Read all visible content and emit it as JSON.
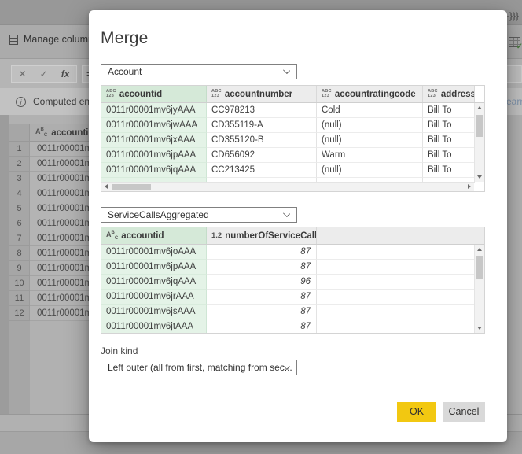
{
  "colors": {
    "accent_yellow": "#F2C811",
    "selected_column_green": "#E4F3E7",
    "selected_header_green": "#D5E9D8",
    "link_blue": "#7E93AD"
  },
  "icons": {
    "abc123_line1": "ABC",
    "abc123_line2": "123",
    "text_type_base": "A",
    "text_type_sup": "B",
    "text_type_sub": "C",
    "number_type": "1.2",
    "fx": "fx",
    "cancel_glyph": "✕",
    "check_glyph": "✓",
    "info_glyph": "i"
  },
  "background": {
    "ribbon_group_label": "Manage columns",
    "formula_bar": {
      "visible_text": "=",
      "right_fragment": "-}}}"
    },
    "info_bar": {
      "text_fragment": "Computed enti",
      "link_fragment": "earn"
    },
    "grid": {
      "header_label": "accountid",
      "cell_fragment": "0011r00001m",
      "row_numbers": [
        "1",
        "2",
        "3",
        "4",
        "5",
        "6",
        "7",
        "8",
        "9",
        "10",
        "11",
        "12"
      ]
    }
  },
  "dialog": {
    "title": "Merge",
    "first_query_dropdown": "Account",
    "second_query_dropdown": "ServiceCallsAggregated",
    "first_table": {
      "columns": [
        {
          "type": "abc123",
          "label": "accountid",
          "selected": true,
          "numeric": false
        },
        {
          "type": "abc123",
          "label": "accountnumber",
          "selected": false,
          "numeric": false
        },
        {
          "type": "abc123",
          "label": "accountratingcode",
          "selected": false,
          "numeric": false
        },
        {
          "type": "abc123",
          "label": "address1_addr",
          "selected": false,
          "numeric": false
        }
      ],
      "rows": [
        [
          "0011r00001mv6jyAAA",
          "CC978213",
          "Cold",
          "Bill To"
        ],
        [
          "0011r00001mv6jwAAA",
          "CD355119-A",
          "(null)",
          "Bill To"
        ],
        [
          "0011r00001mv6jxAAA",
          "CD355120-B",
          "(null)",
          "Bill To"
        ],
        [
          "0011r00001mv6jpAAA",
          "CD656092",
          "Warm",
          "Bill To"
        ],
        [
          "0011r00001mv6jqAAA",
          "CC213425",
          "(null)",
          "Bill To"
        ]
      ]
    },
    "second_table": {
      "columns": [
        {
          "type": "text",
          "label": "accountid",
          "selected": true,
          "numeric": false
        },
        {
          "type": "number",
          "label": "numberOfServiceCalls",
          "selected": false,
          "numeric": true
        }
      ],
      "rows": [
        [
          "0011r00001mv6joAAA",
          "87"
        ],
        [
          "0011r00001mv6jpAAA",
          "87"
        ],
        [
          "0011r00001mv6jqAAA",
          "96"
        ],
        [
          "0011r00001mv6jrAAA",
          "87"
        ],
        [
          "0011r00001mv6jsAAA",
          "87"
        ],
        [
          "0011r00001mv6jtAAA",
          "87"
        ]
      ]
    },
    "join_kind_label": "Join kind",
    "join_kind_value": "Left outer (all from first, matching from sec...",
    "ok_label": "OK",
    "cancel_label": "Cancel"
  }
}
